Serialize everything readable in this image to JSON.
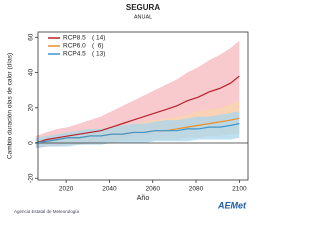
{
  "chart_data": {
    "type": "line",
    "title": "SEGURA",
    "subtitle": "ANUAL",
    "xlabel": "Año",
    "ylabel": "Cambio duración olas de calor (días)",
    "x": [
      2006,
      2011,
      2016,
      2021,
      2026,
      2031,
      2036,
      2041,
      2046,
      2051,
      2056,
      2061,
      2066,
      2071,
      2076,
      2081,
      2086,
      2091,
      2096,
      2100
    ],
    "series": [
      {
        "name": "RCP8.5",
        "count_label": "( 14)",
        "color": "#b8202c",
        "band_color": "#f6b8be",
        "values": [
          0,
          2,
          3,
          4,
          5,
          6,
          7,
          9,
          11,
          13,
          15,
          17,
          19,
          21,
          24,
          26,
          29,
          31,
          34,
          38
        ],
        "low": [
          -3,
          -2,
          -2,
          -1,
          -1,
          0,
          0,
          1,
          2,
          3,
          4,
          5,
          6,
          7,
          8,
          9,
          10,
          11,
          12,
          14
        ],
        "high": [
          4,
          6,
          8,
          9,
          11,
          13,
          15,
          18,
          21,
          24,
          27,
          30,
          33,
          36,
          40,
          43,
          47,
          50,
          54,
          58
        ]
      },
      {
        "name": "RCP6.0",
        "count_label": "(  6)",
        "color": "#e8902c",
        "band_color": "#fbd6ac",
        "values": [
          0,
          1,
          2,
          3,
          3,
          4,
          4,
          5,
          5,
          6,
          6,
          7,
          7,
          8,
          9,
          10,
          11,
          12,
          13,
          14
        ],
        "low": [
          -2,
          -2,
          -1,
          -1,
          -1,
          0,
          0,
          0,
          1,
          1,
          1,
          2,
          2,
          2,
          3,
          3,
          4,
          4,
          5,
          5
        ],
        "high": [
          3,
          4,
          5,
          6,
          7,
          8,
          8,
          9,
          10,
          11,
          12,
          13,
          14,
          15,
          16,
          18,
          19,
          20,
          22,
          24
        ]
      },
      {
        "name": "RCP4.5",
        "count_label": "( 13)",
        "color": "#3c96cc",
        "band_color": "#a9d6ee",
        "values": [
          0,
          1,
          2,
          3,
          3,
          4,
          4,
          5,
          5,
          6,
          6,
          7,
          7,
          7,
          8,
          8,
          9,
          9,
          10,
          11
        ],
        "low": [
          -3,
          -2,
          -2,
          -2,
          -1,
          -1,
          -1,
          0,
          0,
          0,
          0,
          1,
          1,
          1,
          1,
          2,
          2,
          2,
          2,
          3
        ],
        "high": [
          3,
          4,
          5,
          6,
          7,
          8,
          8,
          9,
          10,
          11,
          11,
          12,
          13,
          13,
          14,
          15,
          15,
          16,
          17,
          18
        ]
      }
    ],
    "xlim": [
      2007,
      2104
    ],
    "ylim": [
      -21,
      63
    ],
    "xticks": [
      2020,
      2040,
      2060,
      2080,
      2100
    ],
    "yticks": [
      -20,
      0,
      20,
      40,
      60
    ],
    "zero_line": 0,
    "legend": "upper left"
  },
  "footer": {
    "agency": "Agencia Estatal de Meteorología",
    "logo": "AEMet"
  }
}
